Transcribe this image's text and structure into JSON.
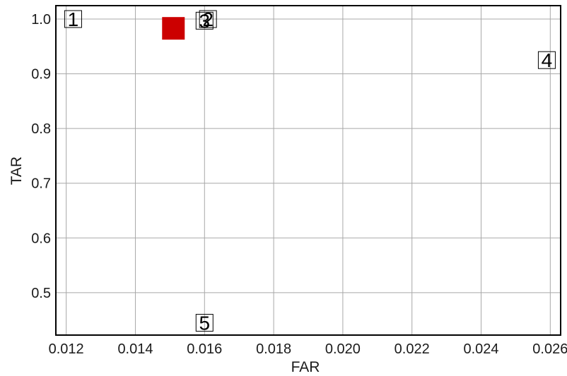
{
  "chart_data": {
    "type": "scatter",
    "title": "",
    "xlabel": "FAR",
    "ylabel": "TAR",
    "xlim": [
      0.0117,
      0.0263
    ],
    "ylim": [
      0.4225,
      1.0245
    ],
    "grid": true,
    "legend": "none",
    "x_ticks": [
      "0.012",
      "0.014",
      "0.016",
      "0.018",
      "0.020",
      "0.022",
      "0.024",
      "0.026"
    ],
    "x_tick_values": [
      0.012,
      0.014,
      0.016,
      0.018,
      0.02,
      0.022,
      0.024,
      0.026
    ],
    "y_ticks": [
      "1.0",
      "0.9",
      "0.8",
      "0.7",
      "0.6",
      "0.5"
    ],
    "y_tick_values": [
      1.0,
      0.9,
      0.8,
      0.7,
      0.6,
      0.5
    ],
    "points": [
      {
        "label": "1",
        "x": 0.0122,
        "y": 1.0
      },
      {
        "label": "2",
        "x": 0.0161,
        "y": 1.0
      },
      {
        "label": "3",
        "x": 0.016,
        "y": 0.997
      },
      {
        "label": "4",
        "x": 0.0259,
        "y": 0.925
      },
      {
        "label": "5",
        "x": 0.016,
        "y": 0.445
      }
    ],
    "highlight": {
      "x": 0.0151,
      "y": 0.983,
      "color": "#cc0000",
      "marker": "square"
    }
  }
}
